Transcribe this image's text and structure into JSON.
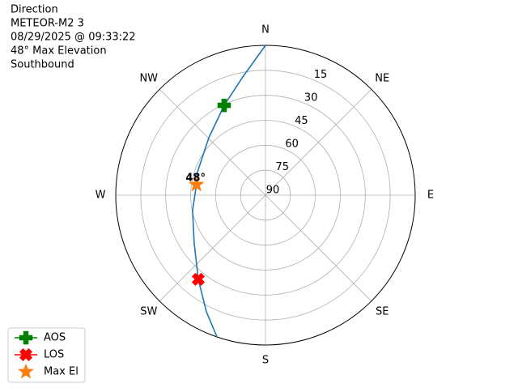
{
  "chart_data": {
    "type": "polar",
    "title_lines": [
      "Direction",
      "METEOR-M2 3",
      "08/29/2025 @ 09:33:22",
      "48° Max Elevation",
      "Southbound"
    ],
    "theta_ticks": [
      {
        "value": 0,
        "label": "N"
      },
      {
        "value": 45,
        "label": "NE"
      },
      {
        "value": 90,
        "label": "E"
      },
      {
        "value": 135,
        "label": "SE"
      },
      {
        "value": 180,
        "label": "S"
      },
      {
        "value": 225,
        "label": "SW"
      },
      {
        "value": 270,
        "label": "W"
      },
      {
        "value": 315,
        "label": "NW"
      }
    ],
    "rlim": [
      90,
      0
    ],
    "rticks": [
      15,
      30,
      45,
      60,
      75,
      90
    ],
    "grid": true,
    "track": {
      "color": "#1f77b4",
      "azimuth": [
        0,
        349.1,
        335.3,
        315.4,
        287,
        278.7,
        258.1,
        236.2,
        218.6,
        206.9,
        198.9
      ],
      "elevation": [
        0,
        17.7,
        30.6,
        41.5,
        46.8,
        48,
        45.2,
        38.4,
        25.3,
        11.5,
        0
      ]
    },
    "markers": [
      {
        "name": "AOS",
        "color": "#008000",
        "marker": "plus",
        "azimuth": 335.3,
        "elevation": 30.6
      },
      {
        "name": "LOS",
        "color": "#ff0000",
        "marker": "x",
        "azimuth": 218.6,
        "elevation": 25.3
      },
      {
        "name": "Max El",
        "color": "#ff7f0e",
        "marker": "star",
        "azimuth": 278.7,
        "elevation": 48
      }
    ],
    "annotation": "48°",
    "legend": "lower left"
  }
}
